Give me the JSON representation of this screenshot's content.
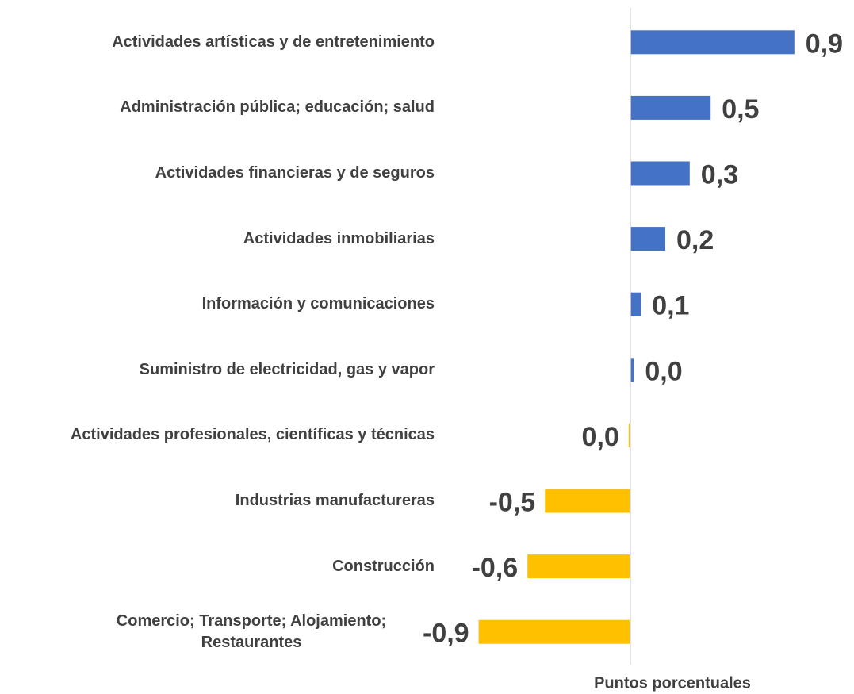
{
  "chart_data": {
    "type": "barh",
    "categories": [
      "Actividades artísticas y de entretenimiento",
      "Administración pública; educación; salud",
      "Actividades financieras y de seguros",
      "Actividades inmobiliarias",
      "Información y comunicaciones",
      "Suministro de electricidad, gas y vapor",
      "Actividades profesionales, científicas y técnicas",
      "Industrias manufactureras",
      "Construcción",
      "Comercio; Transporte; Alojamiento; Restaurantes"
    ],
    "values": [
      0.94,
      0.46,
      0.34,
      0.2,
      0.06,
      0.02,
      -0.01,
      -0.49,
      -0.59,
      -0.87
    ],
    "value_labels": [
      "0,9",
      "0,5",
      "0,3",
      "0,2",
      "0,1",
      "0,0",
      "0,0",
      "-0,5",
      "-0,6",
      "-0,9"
    ],
    "colors": [
      "#4472c4",
      "#4472c4",
      "#4472c4",
      "#4472c4",
      "#4472c4",
      "#4472c4",
      "#ffc000",
      "#ffc000",
      "#ffc000",
      "#ffc000"
    ],
    "xlabel": "Puntos porcentuales",
    "xlim": [
      -1.05,
      1.05
    ]
  }
}
